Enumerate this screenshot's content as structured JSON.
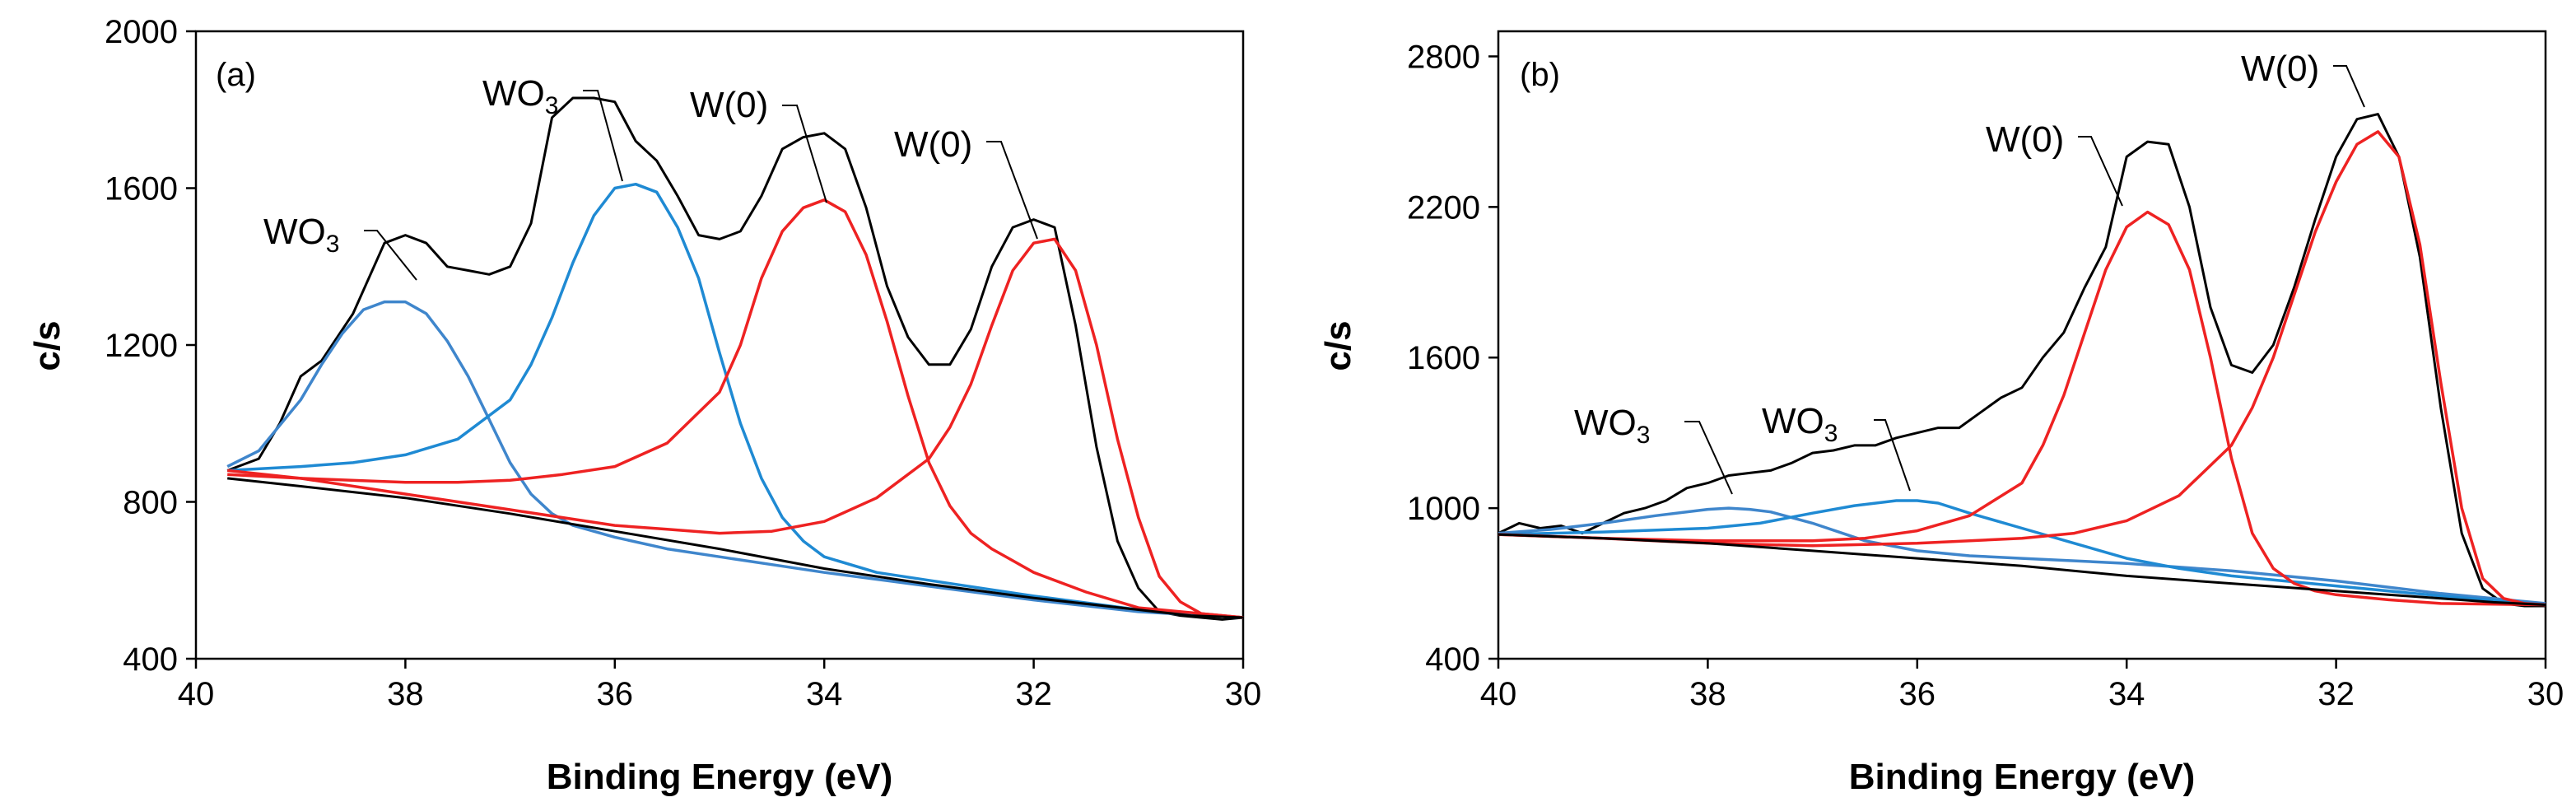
{
  "chart_data": [
    {
      "type": "line",
      "panel_label": "(a)",
      "xlabel": "Binding Energy (eV)",
      "ylabel": "c/s",
      "xlim": [
        40,
        30
      ],
      "ylim": [
        400,
        2000
      ],
      "xticks": [
        "40",
        "38",
        "36",
        "34",
        "32",
        "30"
      ],
      "yticks": [
        "400",
        "800",
        "1200",
        "1600",
        "2000"
      ],
      "series": [
        {
          "name": "measured",
          "color": "#000000",
          "x": [
            39.7,
            39.4,
            39.2,
            39.0,
            38.8,
            38.5,
            38.2,
            38.0,
            37.8,
            37.6,
            37.4,
            37.2,
            37.0,
            36.8,
            36.6,
            36.4,
            36.2,
            36.0,
            35.8,
            35.6,
            35.4,
            35.2,
            35.0,
            34.8,
            34.6,
            34.4,
            34.2,
            34.0,
            33.8,
            33.6,
            33.4,
            33.2,
            33.0,
            32.8,
            32.6,
            32.4,
            32.2,
            32.0,
            31.8,
            31.6,
            31.4,
            31.2,
            31.0,
            30.8,
            30.6,
            30.4,
            30.2,
            30.0
          ],
          "y": [
            880,
            910,
            1000,
            1120,
            1160,
            1280,
            1460,
            1480,
            1460,
            1400,
            1390,
            1380,
            1400,
            1510,
            1780,
            1830,
            1830,
            1820,
            1720,
            1670,
            1580,
            1480,
            1470,
            1490,
            1580,
            1700,
            1730,
            1740,
            1700,
            1550,
            1350,
            1220,
            1150,
            1150,
            1240,
            1400,
            1500,
            1520,
            1500,
            1250,
            940,
            700,
            580,
            520,
            510,
            505,
            500,
            505
          ]
        },
        {
          "name": "WO3 (38.0 eV)",
          "color": "#3f86cc",
          "x": [
            39.7,
            39.4,
            39.0,
            38.8,
            38.6,
            38.4,
            38.2,
            38.0,
            37.8,
            37.6,
            37.4,
            37.2,
            37.0,
            36.8,
            36.6,
            36.4,
            36.0,
            35.5,
            35.0,
            34.5,
            34.0,
            33.0,
            32.0,
            31.0,
            30.0
          ],
          "y": [
            890,
            930,
            1060,
            1150,
            1230,
            1290,
            1310,
            1310,
            1280,
            1210,
            1120,
            1010,
            900,
            820,
            770,
            740,
            710,
            680,
            660,
            640,
            620,
            585,
            550,
            520,
            505
          ]
        },
        {
          "name": "WO3 (35.9 eV)",
          "color": "#1f8ad3",
          "x": [
            39.7,
            39.0,
            38.5,
            38.0,
            37.5,
            37.0,
            36.8,
            36.6,
            36.4,
            36.2,
            36.0,
            35.8,
            35.6,
            35.4,
            35.2,
            35.0,
            34.8,
            34.6,
            34.4,
            34.2,
            34.0,
            33.5,
            33.0,
            32.0,
            31.0,
            30.0
          ],
          "y": [
            880,
            890,
            900,
            920,
            960,
            1060,
            1150,
            1270,
            1410,
            1530,
            1600,
            1610,
            1590,
            1500,
            1370,
            1180,
            1000,
            860,
            760,
            700,
            660,
            620,
            600,
            560,
            525,
            505
          ]
        },
        {
          "name": "W(0) (33.9 eV)",
          "color": "#ee2222",
          "x": [
            39.7,
            39.0,
            38.0,
            37.5,
            37.0,
            36.5,
            36.0,
            35.5,
            35.0,
            34.8,
            34.6,
            34.4,
            34.2,
            34.0,
            33.8,
            33.6,
            33.4,
            33.2,
            33.0,
            32.8,
            32.6,
            32.4,
            32.2,
            32.0,
            31.5,
            31.0,
            30.0
          ],
          "y": [
            870,
            860,
            850,
            850,
            855,
            870,
            890,
            950,
            1080,
            1200,
            1370,
            1490,
            1550,
            1570,
            1540,
            1430,
            1260,
            1070,
            900,
            790,
            720,
            680,
            650,
            620,
            570,
            530,
            505
          ]
        },
        {
          "name": "W(0) (31.8 eV)",
          "color": "#ee2222",
          "x": [
            39.7,
            39.0,
            38.0,
            37.0,
            36.0,
            35.5,
            35.0,
            34.5,
            34.0,
            33.5,
            33.0,
            32.8,
            32.6,
            32.4,
            32.2,
            32.0,
            31.8,
            31.6,
            31.4,
            31.2,
            31.0,
            30.8,
            30.6,
            30.4,
            30.0
          ],
          "y": [
            880,
            860,
            820,
            780,
            740,
            730,
            720,
            725,
            750,
            810,
            910,
            990,
            1100,
            1250,
            1390,
            1460,
            1470,
            1390,
            1200,
            960,
            760,
            610,
            545,
            515,
            505
          ]
        },
        {
          "name": "background",
          "color": "#000000",
          "x": [
            39.7,
            39.0,
            38.0,
            37.0,
            36.0,
            35.0,
            34.0,
            33.0,
            32.0,
            31.0,
            30.5,
            30.0
          ],
          "y": [
            860,
            840,
            810,
            770,
            725,
            680,
            630,
            590,
            555,
            525,
            510,
            505
          ]
        }
      ],
      "annotations": [
        {
          "text": "WO",
          "sub": "3",
          "x": 38.0
        },
        {
          "text": "WO",
          "sub": "3",
          "x": 35.9
        },
        {
          "text": "W(0)",
          "x": 33.9
        },
        {
          "text": "W(0)",
          "x": 31.8
        }
      ]
    },
    {
      "type": "line",
      "panel_label": "(b)",
      "xlabel": "Binding Energy (eV)",
      "ylabel": "c/s",
      "xlim": [
        40,
        30
      ],
      "ylim": [
        400,
        2900
      ],
      "xticks": [
        "40",
        "38",
        "36",
        "34",
        "32",
        "30"
      ],
      "yticks": [
        "400",
        "1000",
        "1600",
        "2200",
        "2800"
      ],
      "series": [
        {
          "name": "measured",
          "color": "#000000",
          "x": [
            40.0,
            39.8,
            39.6,
            39.4,
            39.2,
            39.0,
            38.8,
            38.6,
            38.4,
            38.2,
            38.0,
            37.8,
            37.6,
            37.4,
            37.2,
            37.0,
            36.8,
            36.6,
            36.4,
            36.2,
            36.0,
            35.8,
            35.6,
            35.4,
            35.2,
            35.0,
            34.8,
            34.6,
            34.4,
            34.2,
            34.0,
            33.8,
            33.6,
            33.4,
            33.2,
            33.0,
            32.8,
            32.6,
            32.4,
            32.2,
            32.0,
            31.8,
            31.6,
            31.4,
            31.2,
            31.0,
            30.8,
            30.6,
            30.4,
            30.2,
            30.0
          ],
          "y": [
            900,
            940,
            920,
            930,
            900,
            940,
            980,
            1000,
            1030,
            1080,
            1100,
            1130,
            1140,
            1150,
            1180,
            1220,
            1230,
            1250,
            1250,
            1280,
            1300,
            1320,
            1320,
            1380,
            1440,
            1480,
            1600,
            1700,
            1880,
            2040,
            2400,
            2460,
            2450,
            2200,
            1800,
            1570,
            1540,
            1650,
            1880,
            2150,
            2400,
            2550,
            2570,
            2400,
            2000,
            1400,
            900,
            680,
            620,
            610,
            610
          ]
        },
        {
          "name": "WO3 (37.8 eV)",
          "color": "#3f86cc",
          "x": [
            40.0,
            39.5,
            39.0,
            38.5,
            38.0,
            37.8,
            37.6,
            37.4,
            37.0,
            36.5,
            36.0,
            35.5,
            35.0,
            34.0,
            33.0,
            32.0,
            31.0,
            30.0
          ],
          "y": [
            900,
            915,
            940,
            970,
            995,
            1000,
            995,
            985,
            940,
            870,
            830,
            810,
            800,
            780,
            750,
            710,
            660,
            620
          ]
        },
        {
          "name": "WO3 (36.1 eV)",
          "color": "#1f8ad3",
          "x": [
            40.0,
            39.0,
            38.0,
            37.5,
            37.0,
            36.6,
            36.2,
            36.0,
            35.8,
            35.5,
            35.0,
            34.5,
            34.0,
            33.5,
            33.0,
            32.0,
            31.0,
            30.0
          ],
          "y": [
            895,
            905,
            920,
            940,
            980,
            1010,
            1030,
            1030,
            1020,
            980,
            920,
            860,
            800,
            760,
            730,
            690,
            650,
            615
          ]
        },
        {
          "name": "W(0) (33.8 eV)",
          "color": "#ee2222",
          "x": [
            40.0,
            39.0,
            38.0,
            37.0,
            36.5,
            36.0,
            35.5,
            35.0,
            34.8,
            34.6,
            34.4,
            34.2,
            34.0,
            33.8,
            33.6,
            33.4,
            33.2,
            33.0,
            32.8,
            32.6,
            32.4,
            32.2,
            32.0,
            31.5,
            31.0,
            30.0
          ],
          "y": [
            895,
            880,
            870,
            870,
            880,
            910,
            970,
            1100,
            1250,
            1450,
            1700,
            1950,
            2120,
            2180,
            2130,
            1950,
            1600,
            1200,
            900,
            760,
            700,
            670,
            655,
            635,
            620,
            615
          ]
        },
        {
          "name": "W(0) (31.6 eV)",
          "color": "#ee2222",
          "x": [
            40.0,
            39.0,
            38.0,
            37.0,
            36.0,
            35.0,
            34.5,
            34.0,
            33.5,
            33.0,
            32.8,
            32.6,
            32.4,
            32.2,
            32.0,
            31.8,
            31.6,
            31.4,
            31.2,
            31.0,
            30.8,
            30.6,
            30.4,
            30.2,
            30.0
          ],
          "y": [
            895,
            880,
            860,
            850,
            860,
            880,
            900,
            950,
            1050,
            1250,
            1400,
            1600,
            1850,
            2100,
            2300,
            2450,
            2500,
            2400,
            2050,
            1500,
            1000,
            720,
            640,
            620,
            615
          ]
        },
        {
          "name": "background",
          "color": "#000000",
          "x": [
            40.0,
            39.0,
            38.0,
            37.0,
            36.0,
            35.0,
            34.0,
            33.0,
            32.0,
            31.0,
            30.5,
            30.0
          ],
          "y": [
            895,
            880,
            860,
            830,
            800,
            770,
            730,
            700,
            670,
            640,
            625,
            615
          ]
        }
      ],
      "annotations": [
        {
          "text": "WO",
          "sub": "3",
          "x": 37.8
        },
        {
          "text": "WO",
          "sub": "3",
          "x": 36.1
        },
        {
          "text": "W(0)",
          "x": 33.8
        },
        {
          "text": "W(0)",
          "x": 31.6
        }
      ]
    }
  ]
}
